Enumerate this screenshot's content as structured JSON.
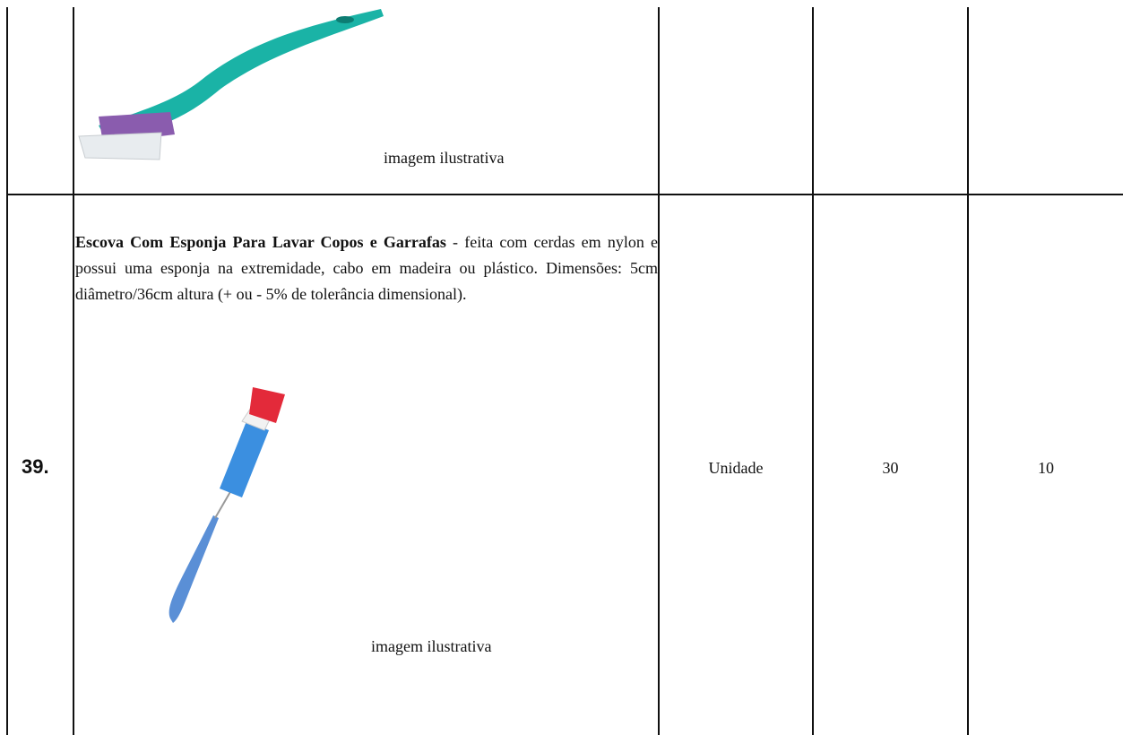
{
  "table": {
    "rows": [
      {
        "caption": "imagem ilustrativa"
      },
      {
        "number": "39.",
        "title": "Escova Com Esponja Para Lavar Copos e Garrafas",
        "description": " - feita com cerdas em nylon e possui uma esponja na extremidade, cabo em madeira ou plástico. Dimensões: 5cm diâmetro/36cm altura (+ ou - 5% de tolerância dimensional).",
        "caption": "imagem ilustrativa",
        "unit": "Unidade",
        "quantity_a": "30",
        "quantity_b": "10"
      }
    ]
  }
}
